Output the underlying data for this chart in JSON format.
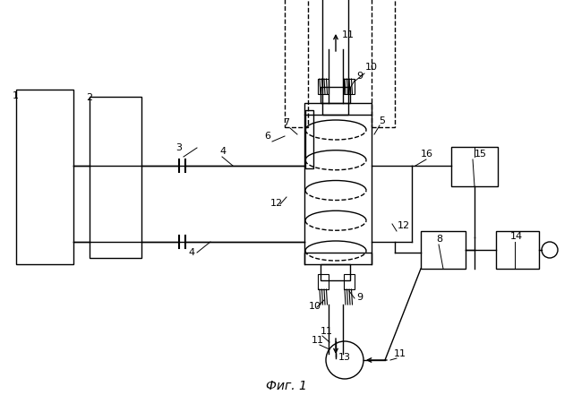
{
  "title": "Фиг. 1",
  "background_color": "#ffffff",
  "fig_width": 6.4,
  "fig_height": 4.41,
  "dpi": 100,
  "lw": 1.0,
  "clr": "black"
}
